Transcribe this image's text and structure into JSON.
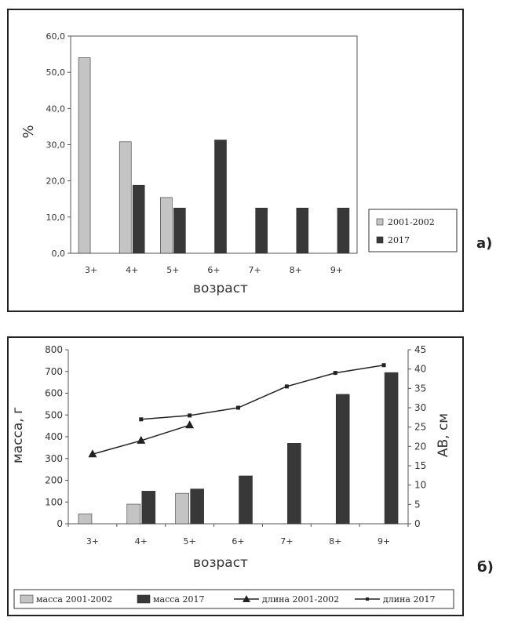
{
  "colors": {
    "series_2001": "#c4c4c4",
    "series_2017": "#383838",
    "axis": "#555555",
    "frame": "#222222"
  },
  "panel_a": {
    "label": "а)",
    "ylabel": "%",
    "xlabel": "возраст",
    "legend": [
      "2001-2002",
      "2017"
    ]
  },
  "panel_b": {
    "label": "б)",
    "ylabel_left": "масса, г",
    "ylabel_right": "АВ, см",
    "xlabel": "возраст",
    "legend": [
      "масса 2001-2002",
      "масса 2017",
      "длина 2001-2002",
      "длина 2017"
    ]
  },
  "chart_data": [
    {
      "type": "bar",
      "categories": [
        "3+",
        "4+",
        "5+",
        "6+",
        "7+",
        "8+",
        "9+"
      ],
      "series": [
        {
          "name": "2001-2002",
          "values": [
            54.0,
            30.8,
            15.4,
            null,
            null,
            null,
            null
          ]
        },
        {
          "name": "2017",
          "values": [
            null,
            18.8,
            12.5,
            31.3,
            12.5,
            12.5,
            12.5
          ]
        }
      ],
      "ylim": [
        0,
        60
      ],
      "yticks": [
        "0,0",
        "10,0",
        "20,0",
        "30,0",
        "40,0",
        "50,0",
        "60,0"
      ],
      "ylabel": "%",
      "xlabel": "возраст",
      "grid": false,
      "legend_position": "right"
    },
    {
      "type": "bar",
      "categories": [
        "3+",
        "4+",
        "5+",
        "6+",
        "7+",
        "8+",
        "9+"
      ],
      "series": [
        {
          "name": "масса 2001-2002",
          "type": "bar",
          "axis": "left",
          "values": [
            45,
            90,
            140,
            null,
            null,
            null,
            null
          ]
        },
        {
          "name": "масса 2017",
          "type": "bar",
          "axis": "left",
          "values": [
            null,
            150,
            160,
            220,
            370,
            595,
            695
          ]
        },
        {
          "name": "длина 2001-2002",
          "type": "line",
          "marker": "triangle",
          "axis": "right",
          "values": [
            18,
            21.5,
            25.5,
            null,
            null,
            null,
            null
          ]
        },
        {
          "name": "длина 2017",
          "type": "line",
          "marker": "square",
          "axis": "right",
          "values": [
            null,
            27,
            28,
            30,
            35.5,
            39,
            41
          ]
        }
      ],
      "ylim_left": [
        0,
        800
      ],
      "yticks_left": [
        "0",
        "100",
        "200",
        "300",
        "400",
        "500",
        "600",
        "700",
        "800"
      ],
      "ylim_right": [
        0,
        45
      ],
      "yticks_right": [
        "0",
        "5",
        "10",
        "15",
        "20",
        "25",
        "30",
        "35",
        "40",
        "45"
      ],
      "ylabel_left": "масса, г",
      "ylabel_right": "АВ, см",
      "xlabel": "возраст",
      "grid": false,
      "legend_position": "bottom"
    }
  ]
}
